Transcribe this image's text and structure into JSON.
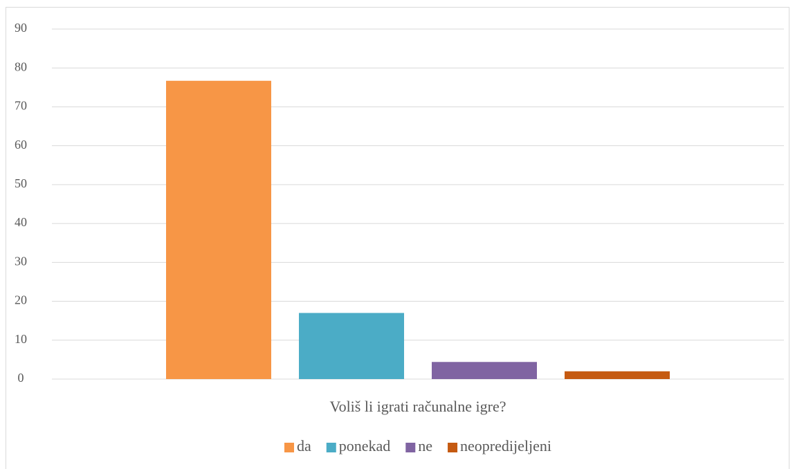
{
  "chart_data": {
    "type": "bar",
    "categories": [
      "Voliš li igrati računalne igre?"
    ],
    "series": [
      {
        "name": "da",
        "color": "#f79646",
        "values": [
          76.7
        ]
      },
      {
        "name": "ponekad",
        "color": "#4bacc6",
        "values": [
          17
        ]
      },
      {
        "name": "ne",
        "color": "#8064a2",
        "values": [
          4.4
        ]
      },
      {
        "name": "neopredijeljeni",
        "color": "#c55a11",
        "values": [
          2
        ]
      }
    ],
    "ylim": [
      0,
      90
    ],
    "yticks": [
      0,
      10,
      20,
      30,
      40,
      50,
      60,
      70,
      80,
      90
    ],
    "grid": true,
    "legend": "bottom"
  }
}
